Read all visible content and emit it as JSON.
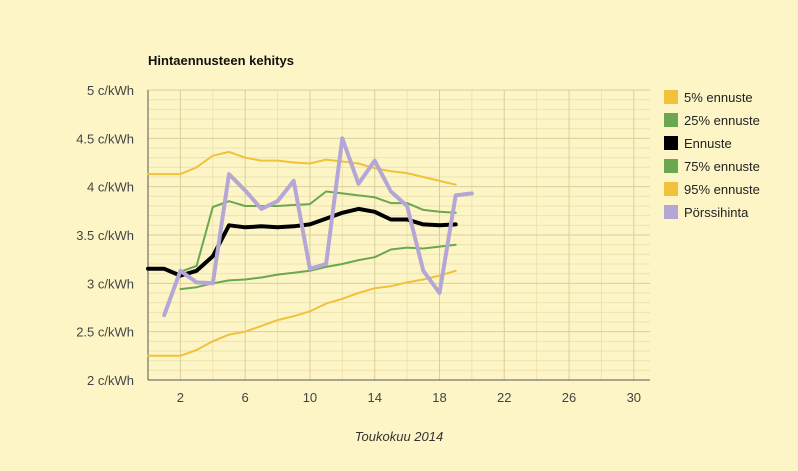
{
  "chart_data": {
    "type": "line",
    "title": "Hintaennusteen kehitys",
    "xlabel": "Toukokuu 2014",
    "ylabel": "",
    "xlim": [
      0,
      31
    ],
    "ylim": [
      2,
      5
    ],
    "x_ticks": [
      2,
      6,
      10,
      14,
      18,
      22,
      26,
      30
    ],
    "y_ticks": [
      {
        "value": 2,
        "label": "2 c/kWh"
      },
      {
        "value": 2.5,
        "label": "2.5 c/kWh"
      },
      {
        "value": 3,
        "label": "3 c/kWh"
      },
      {
        "value": 3.5,
        "label": "3.5 c/kWh"
      },
      {
        "value": 4,
        "label": "4 c/kWh"
      },
      {
        "value": 4.5,
        "label": "4.5 c/kWh"
      },
      {
        "value": 5,
        "label": "5 c/kWh"
      }
    ],
    "grid": true,
    "legend_position": "right",
    "series": [
      {
        "name": "5% ennuste",
        "color": "#f0c23b",
        "width": 2,
        "x": [
          0,
          1,
          2,
          3,
          4,
          5,
          6,
          7,
          8,
          9,
          10,
          11,
          12,
          13,
          14,
          15,
          16,
          17,
          18,
          19
        ],
        "values": [
          2.25,
          2.25,
          2.25,
          2.31,
          2.4,
          2.47,
          2.5,
          2.56,
          2.62,
          2.66,
          2.71,
          2.79,
          2.84,
          2.9,
          2.95,
          2.97,
          3.01,
          3.04,
          3.08,
          3.13
        ]
      },
      {
        "name": "25% ennuste",
        "color": "#6aa84f",
        "width": 2,
        "x": [
          2,
          3,
          4,
          5,
          6,
          7,
          8,
          9,
          10,
          11,
          12,
          13,
          14,
          15,
          16,
          17,
          18,
          19
        ],
        "values": [
          2.94,
          2.96,
          3.0,
          3.03,
          3.04,
          3.06,
          3.09,
          3.11,
          3.13,
          3.17,
          3.2,
          3.24,
          3.27,
          3.35,
          3.37,
          3.36,
          3.38,
          3.4
        ]
      },
      {
        "name": "Ennuste",
        "color": "#000000",
        "width": 4,
        "x": [
          0,
          1,
          2,
          3,
          4,
          5,
          6,
          7,
          8,
          9,
          10,
          11,
          12,
          13,
          14,
          15,
          16,
          17,
          18,
          19
        ],
        "values": [
          3.15,
          3.15,
          3.08,
          3.13,
          3.28,
          3.6,
          3.58,
          3.59,
          3.58,
          3.59,
          3.61,
          3.67,
          3.73,
          3.77,
          3.74,
          3.66,
          3.66,
          3.61,
          3.6,
          3.61
        ]
      },
      {
        "name": "75% ennuste",
        "color": "#6aa84f",
        "width": 2,
        "x": [
          2,
          3,
          4,
          5,
          6,
          7,
          8,
          9,
          10,
          11,
          12,
          13,
          14,
          15,
          16,
          17,
          18,
          19
        ],
        "values": [
          3.12,
          3.18,
          3.79,
          3.85,
          3.8,
          3.8,
          3.8,
          3.81,
          3.82,
          3.95,
          3.93,
          3.91,
          3.89,
          3.83,
          3.83,
          3.76,
          3.74,
          3.73
        ]
      },
      {
        "name": "95% ennuste",
        "color": "#f0c23b",
        "width": 2,
        "x": [
          0,
          1,
          2,
          3,
          4,
          5,
          6,
          7,
          8,
          9,
          10,
          11,
          12,
          13,
          14,
          15,
          16,
          17,
          18,
          19
        ],
        "values": [
          4.13,
          4.13,
          4.13,
          4.2,
          4.32,
          4.36,
          4.3,
          4.27,
          4.27,
          4.25,
          4.24,
          4.28,
          4.26,
          4.24,
          4.19,
          4.16,
          4.14,
          4.1,
          4.06,
          4.02
        ]
      },
      {
        "name": "Pörssihinta",
        "color": "#b4a7d6",
        "width": 4,
        "x": [
          1,
          2,
          3,
          4,
          5,
          6,
          7,
          8,
          9,
          10,
          11,
          12,
          13,
          14,
          15,
          16,
          17,
          18,
          19,
          20
        ],
        "values": [
          2.67,
          3.13,
          3.01,
          3.0,
          4.13,
          3.96,
          3.77,
          3.85,
          4.06,
          3.15,
          3.2,
          4.5,
          4.03,
          4.27,
          3.95,
          3.8,
          3.13,
          2.9,
          3.91,
          3.93
        ]
      }
    ]
  }
}
